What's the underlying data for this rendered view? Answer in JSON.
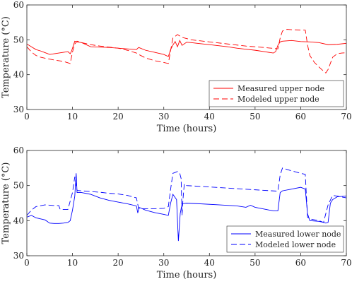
{
  "chart_data": [
    {
      "type": "line",
      "xlabel": "Time (hours)",
      "ylabel": "Temperature (°C)",
      "xlim": [
        0,
        70
      ],
      "ylim": [
        30,
        60
      ],
      "xticks": [
        0,
        10,
        20,
        30,
        40,
        50,
        60,
        70
      ],
      "yticks": [
        30,
        40,
        50,
        60
      ],
      "grid": false,
      "legend": "bottom-right",
      "series": [
        {
          "name": "Measured upper node",
          "color": "#ff0000",
          "style": "solid",
          "x": [
            0,
            1,
            2,
            3,
            4,
            5,
            6,
            7,
            8,
            9,
            9.5,
            9.8,
            10,
            10.5,
            11,
            12,
            14,
            16,
            18,
            20,
            22,
            24,
            24.5,
            26,
            28,
            30,
            31,
            31.5,
            32,
            32.5,
            33,
            33.5,
            34,
            35,
            36,
            38,
            40,
            42,
            44,
            46,
            48,
            50,
            52,
            54,
            54.5,
            55,
            55.5,
            56,
            57,
            58,
            60,
            62,
            64,
            66,
            68,
            70
          ],
          "y": [
            48.8,
            48,
            47.2,
            46.8,
            46.3,
            45.8,
            46,
            46.2,
            46.4,
            46.6,
            46,
            46.8,
            47.6,
            49.6,
            49.4,
            49.2,
            48,
            47.9,
            47.8,
            47.6,
            47.4,
            47.2,
            47.8,
            47,
            46.4,
            45.8,
            45.2,
            47.2,
            48.5,
            49.5,
            48,
            49.8,
            48.4,
            49.3,
            49.2,
            48.9,
            48.6,
            48.3,
            48,
            47.6,
            47.3,
            47,
            46.6,
            46.2,
            46.6,
            48.4,
            49.4,
            49.6,
            49.7,
            49.8,
            49.5,
            49.4,
            49.2,
            48.6,
            48.7,
            49
          ]
        },
        {
          "name": "Modeled upper node",
          "color": "#ff0000",
          "style": "dashed",
          "x": [
            0,
            1,
            2,
            3,
            4,
            6,
            8,
            9.5,
            10,
            10.5,
            11,
            12,
            14,
            16,
            18,
            20,
            22,
            24,
            24.5,
            26,
            28,
            30,
            31,
            31.5,
            32,
            33,
            34,
            36,
            40,
            44,
            48,
            52,
            55,
            55.5,
            56,
            57,
            58,
            60,
            61,
            61.5,
            62,
            63,
            64,
            65,
            65.5,
            66,
            67,
            68,
            69,
            70
          ],
          "y": [
            48,
            46.5,
            45.5,
            45,
            44.7,
            44.2,
            43.8,
            43.2,
            46.5,
            48.8,
            49.6,
            49.2,
            48.6,
            48.2,
            47.9,
            47.6,
            47,
            46.2,
            45.8,
            44.8,
            44,
            43.5,
            43.2,
            47,
            50.5,
            51.5,
            50.7,
            50,
            49.4,
            48.8,
            48.2,
            47.8,
            47.4,
            50.5,
            52.5,
            53,
            52.9,
            52.8,
            52.8,
            48.5,
            45.5,
            43.5,
            42.2,
            41,
            40.5,
            41.5,
            45,
            46,
            46.2,
            46.3
          ]
        }
      ]
    },
    {
      "type": "line",
      "xlabel": "Time (hours)",
      "ylabel": "Temperature (°C)",
      "xlim": [
        0,
        70
      ],
      "ylim": [
        30,
        60
      ],
      "xticks": [
        0,
        10,
        20,
        30,
        40,
        50,
        60,
        70
      ],
      "yticks": [
        30,
        40,
        50,
        60
      ],
      "grid": false,
      "legend": "bottom-right",
      "series": [
        {
          "name": "Measured lower node",
          "color": "#0000ff",
          "style": "solid",
          "x": [
            0,
            1,
            2,
            3,
            4,
            5,
            6,
            7,
            8,
            9,
            9.5,
            10,
            10.5,
            10.8,
            11,
            12,
            14,
            16,
            18,
            20,
            22,
            24,
            24.3,
            24.6,
            26,
            28,
            30,
            31,
            31.5,
            32,
            32.8,
            33.2,
            33.6,
            34,
            35,
            38,
            42,
            46,
            48,
            49,
            50,
            52,
            54,
            55,
            55.5,
            56,
            58,
            60,
            61,
            61.5,
            62,
            64,
            65,
            65.5,
            66,
            66.5,
            67,
            68,
            70
          ],
          "y": [
            41,
            41.5,
            40.8,
            40.5,
            40.2,
            39.3,
            39.2,
            39.2,
            39.3,
            39.5,
            40,
            43,
            47,
            53.5,
            48,
            48,
            47.5,
            46.5,
            45.8,
            45.3,
            44.8,
            44.2,
            42.2,
            43.8,
            43,
            42.3,
            41.8,
            41.5,
            45,
            47.5,
            46,
            34.2,
            42,
            44.8,
            45,
            44.8,
            44.5,
            44.2,
            43.8,
            44.4,
            43.8,
            43.3,
            42.8,
            42.8,
            48,
            48.5,
            49,
            49.5,
            49,
            42,
            40,
            39.8,
            39.5,
            39.3,
            39.5,
            45,
            46,
            46.8,
            47
          ]
        },
        {
          "name": "Modeled lower node",
          "color": "#0000ff",
          "style": "dashed",
          "x": [
            0,
            1,
            2,
            4,
            6,
            7,
            7.3,
            9,
            10,
            10.5,
            11,
            12,
            14,
            16,
            18,
            20,
            22,
            24,
            24.5,
            28,
            30,
            31,
            31.5,
            32,
            33,
            33.5,
            33.8,
            34,
            34.2,
            34.5,
            35,
            40,
            45,
            50,
            55,
            55.5,
            56,
            58,
            60,
            61,
            61.5,
            62,
            64,
            65,
            66,
            67,
            68,
            70
          ],
          "y": [
            41.5,
            43,
            44,
            44.5,
            44.3,
            44.3,
            43.2,
            43.2,
            48,
            52.5,
            48.6,
            48.5,
            48.3,
            48.1,
            47.8,
            47.6,
            47.2,
            46.5,
            43.4,
            43.4,
            43.5,
            44,
            49,
            53.5,
            54,
            53.5,
            52,
            41.5,
            46,
            50.5,
            50,
            49.6,
            49.2,
            48.8,
            48.4,
            53,
            55,
            54.2,
            53.5,
            53.2,
            41,
            40.5,
            40,
            39.5,
            44.5,
            47.2,
            47,
            46.5
          ]
        }
      ]
    }
  ]
}
